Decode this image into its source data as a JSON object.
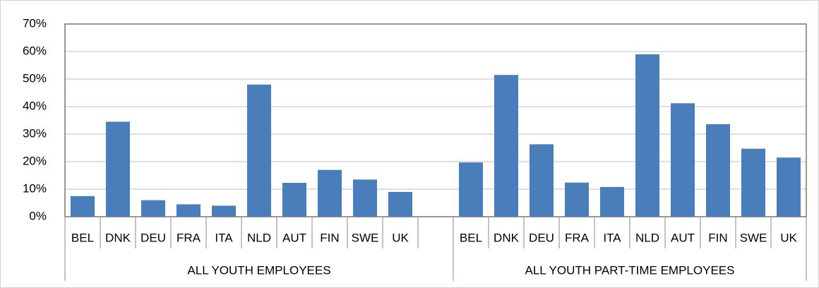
{
  "chart_data": {
    "type": "bar",
    "color": "#4a7ebb",
    "grid": true,
    "ylim": [
      0,
      70
    ],
    "yticks": [
      {
        "value": 0,
        "label": "0%"
      },
      {
        "value": 10,
        "label": "10%"
      },
      {
        "value": 20,
        "label": "20%"
      },
      {
        "value": 30,
        "label": "30%"
      },
      {
        "value": 40,
        "label": "40%"
      },
      {
        "value": 50,
        "label": "50%"
      },
      {
        "value": 60,
        "label": "60%"
      },
      {
        "value": 70,
        "label": "70%"
      }
    ],
    "groups": [
      {
        "label": "ALL YOUTH EMPLOYEES",
        "categories": [
          "BEL",
          "DNK",
          "DEU",
          "FRA",
          "ITA",
          "NLD",
          "AUT",
          "FIN",
          "SWE",
          "UK"
        ],
        "values": [
          7.5,
          34.5,
          6,
          4.5,
          4,
          48,
          12.3,
          17,
          13.5,
          9
        ]
      },
      {
        "label": "ALL YOUTH PART-TIME EMPLOYEES",
        "categories": [
          "BEL",
          "DNK",
          "DEU",
          "FRA",
          "ITA",
          "NLD",
          "AUT",
          "FIN",
          "SWE",
          "UK"
        ],
        "values": [
          19.7,
          51.5,
          26.3,
          12.4,
          10.8,
          59,
          41.2,
          33.6,
          24.7,
          21.5
        ]
      }
    ]
  }
}
